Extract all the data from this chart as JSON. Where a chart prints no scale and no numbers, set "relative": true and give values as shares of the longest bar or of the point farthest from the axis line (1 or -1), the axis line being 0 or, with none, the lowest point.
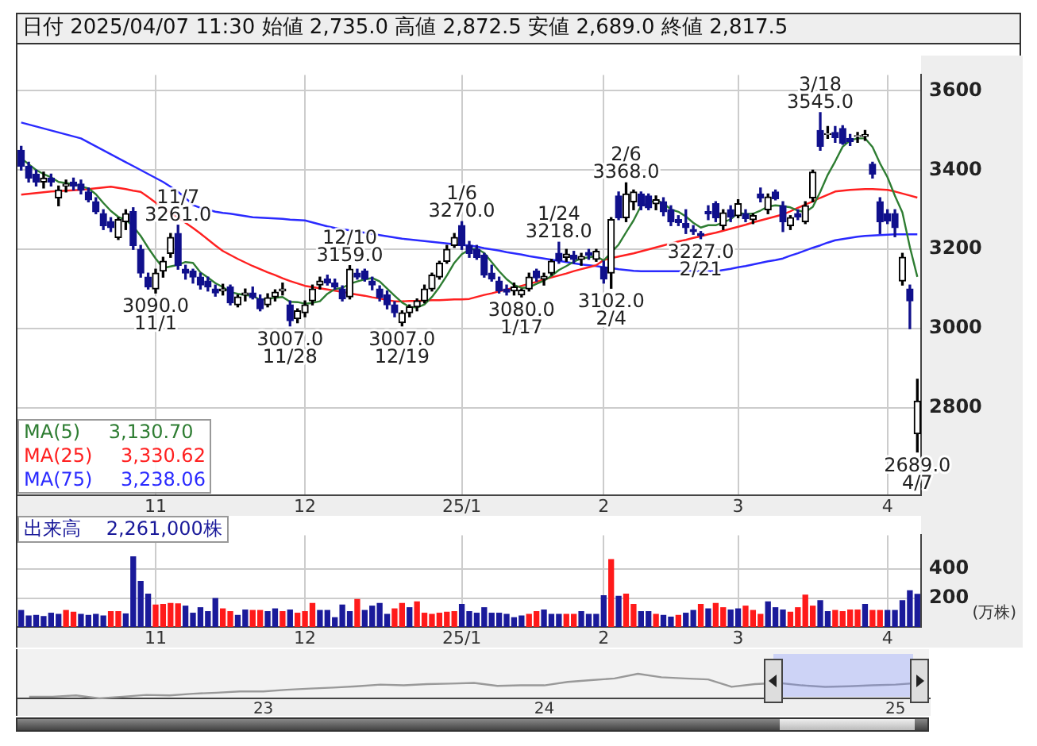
{
  "chart_data": [
    {
      "type": "candlestick",
      "title": "日付 2025/04/07 11:30 始値 2,735.0 高値 2,872.5 安値 2,689.0 終値 2,817.5",
      "categories": [
        null,
        null,
        null,
        null,
        null,
        null,
        null,
        null,
        null,
        null,
        null,
        null,
        null,
        null,
        null,
        null,
        null,
        null,
        "11",
        null,
        null,
        null,
        null,
        null,
        null,
        null,
        null,
        null,
        null,
        null,
        null,
        null,
        null,
        null,
        null,
        null,
        null,
        null,
        "12",
        null,
        null,
        null,
        null,
        null,
        null,
        null,
        null,
        null,
        null,
        null,
        null,
        null,
        null,
        null,
        null,
        null,
        null,
        null,
        null,
        "25/1",
        null,
        null,
        null,
        null,
        null,
        null,
        null,
        null,
        null,
        null,
        null,
        null,
        null,
        null,
        null,
        null,
        null,
        null,
        "2",
        null,
        null,
        null,
        null,
        null,
        null,
        null,
        null,
        null,
        null,
        null,
        null,
        null,
        null,
        null,
        null,
        null,
        "3",
        null,
        null,
        null,
        null,
        null,
        null,
        null,
        null,
        null,
        null,
        null,
        null,
        null,
        null,
        null,
        null,
        null,
        null,
        null,
        "4",
        null,
        null,
        null,
        null
      ],
      "ohlc": [
        [
          3450,
          3460,
          3400,
          3410
        ],
        [
          3410,
          3420,
          3370,
          3380
        ],
        [
          3390,
          3400,
          3360,
          3370
        ],
        [
          3370,
          3395,
          3355,
          3380
        ],
        [
          3380,
          3390,
          3360,
          3370
        ],
        [
          3330,
          3360,
          3310,
          3350
        ],
        [
          3360,
          3375,
          3345,
          3365
        ],
        [
          3370,
          3380,
          3350,
          3360
        ],
        [
          3365,
          3375,
          3340,
          3350
        ],
        [
          3345,
          3355,
          3320,
          3325
        ],
        [
          3320,
          3330,
          3290,
          3295
        ],
        [
          3290,
          3300,
          3250,
          3260
        ],
        [
          3270,
          3280,
          3245,
          3255
        ],
        [
          3230,
          3280,
          3225,
          3275
        ],
        [
          3270,
          3300,
          3250,
          3290
        ],
        [
          3295,
          3305,
          3200,
          3210
        ],
        [
          3200,
          3210,
          3130,
          3140
        ],
        [
          3130,
          3140,
          3100,
          3105
        ],
        [
          3100,
          3150,
          3090,
          3140
        ],
        [
          3145,
          3180,
          3130,
          3170
        ],
        [
          3190,
          3240,
          3180,
          3230
        ],
        [
          3240,
          3261,
          3150,
          3160
        ],
        [
          3150,
          3160,
          3125,
          3140
        ],
        [
          3145,
          3150,
          3115,
          3130
        ],
        [
          3130,
          3140,
          3100,
          3110
        ],
        [
          3120,
          3130,
          3095,
          3105
        ],
        [
          3100,
          3110,
          3082,
          3090
        ],
        [
          3095,
          3112,
          3085,
          3100
        ],
        [
          3105,
          3110,
          3060,
          3065
        ],
        [
          3060,
          3085,
          3055,
          3080
        ],
        [
          3085,
          3100,
          3070,
          3090
        ],
        [
          3090,
          3105,
          3075,
          3078
        ],
        [
          3075,
          3085,
          3045,
          3050
        ],
        [
          3060,
          3088,
          3055,
          3078
        ],
        [
          3080,
          3098,
          3070,
          3092
        ],
        [
          3095,
          3115,
          3085,
          3100
        ],
        [
          3060,
          3070,
          3007,
          3020
        ],
        [
          3025,
          3050,
          3015,
          3045
        ],
        [
          3040,
          3070,
          3030,
          3060
        ],
        [
          3070,
          3110,
          3060,
          3100
        ],
        [
          3110,
          3130,
          3100,
          3120
        ],
        [
          3125,
          3135,
          3110,
          3115
        ],
        [
          3115,
          3125,
          3100,
          3105
        ],
        [
          3100,
          3108,
          3070,
          3075
        ],
        [
          3080,
          3159,
          3075,
          3150
        ],
        [
          3140,
          3150,
          3125,
          3130
        ],
        [
          3145,
          3150,
          3120,
          3125
        ],
        [
          3120,
          3130,
          3098,
          3110
        ],
        [
          3100,
          3108,
          3070,
          3078
        ],
        [
          3085,
          3095,
          3050,
          3060
        ],
        [
          3060,
          3068,
          3030,
          3040
        ],
        [
          3015,
          3045,
          3007,
          3040
        ],
        [
          3040,
          3060,
          3030,
          3055
        ],
        [
          3055,
          3075,
          3045,
          3070
        ],
        [
          3070,
          3110,
          3065,
          3100
        ],
        [
          3100,
          3140,
          3095,
          3135
        ],
        [
          3130,
          3170,
          3125,
          3165
        ],
        [
          3170,
          3210,
          3165,
          3200
        ],
        [
          3210,
          3240,
          3205,
          3230
        ],
        [
          3260,
          3270,
          3200,
          3210
        ],
        [
          3210,
          3220,
          3180,
          3190
        ],
        [
          3200,
          3210,
          3175,
          3180
        ],
        [
          3185,
          3190,
          3130,
          3135
        ],
        [
          3140,
          3160,
          3120,
          3125
        ],
        [
          3120,
          3130,
          3090,
          3095
        ],
        [
          3100,
          3110,
          3085,
          3092
        ],
        [
          3095,
          3115,
          3085,
          3105
        ],
        [
          3085,
          3100,
          3080,
          3097
        ],
        [
          3100,
          3140,
          3095,
          3130
        ],
        [
          3145,
          3150,
          3120,
          3128
        ],
        [
          3125,
          3140,
          3110,
          3132
        ],
        [
          3140,
          3175,
          3135,
          3170
        ],
        [
          3190,
          3218,
          3165,
          3172
        ],
        [
          3180,
          3200,
          3170,
          3188
        ],
        [
          3185,
          3195,
          3165,
          3175
        ],
        [
          3175,
          3190,
          3160,
          3182
        ],
        [
          3192,
          3200,
          3175,
          3185
        ],
        [
          3175,
          3200,
          3170,
          3195
        ],
        [
          3155,
          3170,
          3115,
          3125
        ],
        [
          3140,
          3280,
          3102,
          3275
        ],
        [
          3335,
          3345,
          3275,
          3280
        ],
        [
          3280,
          3368,
          3270,
          3340
        ],
        [
          3320,
          3350,
          3300,
          3345
        ],
        [
          3340,
          3345,
          3300,
          3310
        ],
        [
          3335,
          3340,
          3300,
          3305
        ],
        [
          3315,
          3335,
          3300,
          3325
        ],
        [
          3320,
          3330,
          3285,
          3295
        ],
        [
          3300,
          3310,
          3260,
          3270
        ],
        [
          3275,
          3285,
          3260,
          3268
        ],
        [
          3265,
          3300,
          3240,
          3255
        ],
        [
          3250,
          3260,
          3238,
          3245
        ],
        [
          3240,
          3245,
          3227,
          3235
        ],
        [
          3295,
          3310,
          3275,
          3290
        ],
        [
          3315,
          3320,
          3270,
          3280
        ],
        [
          3260,
          3300,
          3250,
          3292
        ],
        [
          3300,
          3310,
          3270,
          3282
        ],
        [
          3285,
          3325,
          3280,
          3315
        ],
        [
          3290,
          3300,
          3270,
          3278
        ],
        [
          3275,
          3290,
          3265,
          3285
        ],
        [
          3340,
          3355,
          3320,
          3330
        ],
        [
          3300,
          3340,
          3290,
          3332
        ],
        [
          3345,
          3350,
          3325,
          3328
        ],
        [
          3310,
          3320,
          3245,
          3270
        ],
        [
          3260,
          3285,
          3250,
          3280
        ],
        [
          3290,
          3300,
          3275,
          3282
        ],
        [
          3270,
          3320,
          3265,
          3310
        ],
        [
          3330,
          3400,
          3320,
          3395
        ],
        [
          3500,
          3545,
          3450,
          3460
        ],
        [
          3490,
          3510,
          3480,
          3492
        ],
        [
          3495,
          3510,
          3470,
          3482
        ],
        [
          3505,
          3512,
          3465,
          3468
        ],
        [
          3480,
          3490,
          3462,
          3472
        ],
        [
          3485,
          3495,
          3470,
          3487
        ],
        [
          3485,
          3500,
          3475,
          3490
        ],
        [
          3415,
          3420,
          3380,
          3390
        ],
        [
          3320,
          3330,
          3240,
          3270
        ],
        [
          3290,
          3300,
          3265,
          3272
        ],
        [
          3290,
          3300,
          3232,
          3255
        ],
        [
          3120,
          3190,
          3110,
          3180
        ],
        [
          3100,
          3110,
          3000,
          3070
        ],
        [
          2735,
          2872.5,
          2689,
          2817.5
        ]
      ],
      "series": [
        {
          "type": "line",
          "name": "MA(5) 3,130.70",
          "color": "#2e7d32",
          "values": [
            3430,
            3415,
            3400,
            3390,
            3382,
            3370,
            3367,
            3365,
            3359,
            3354,
            3339,
            3317,
            3297,
            3282,
            3275,
            3258,
            3234,
            3204,
            3177,
            3153,
            3157,
            3161,
            3168,
            3166,
            3142,
            3129,
            3115,
            3105,
            3092,
            3088,
            3085,
            3083,
            3073,
            3075,
            3078,
            3080,
            3068,
            3067,
            3063,
            3065,
            3069,
            3088,
            3100,
            3103,
            3113,
            3119,
            3124,
            3128,
            3119,
            3101,
            3083,
            3066,
            3055,
            3053,
            3061,
            3080,
            3105,
            3134,
            3166,
            3188,
            3199,
            3202,
            3191,
            3168,
            3145,
            3125,
            3110,
            3103,
            3104,
            3113,
            3121,
            3133,
            3148,
            3158,
            3169,
            3177,
            3180,
            3183,
            3172,
            3192,
            3212,
            3243,
            3273,
            3310,
            3316,
            3325,
            3316,
            3301,
            3295,
            3283,
            3267,
            3255,
            3261,
            3261,
            3268,
            3276,
            3292,
            3289,
            3290,
            3298,
            3308,
            3311,
            3309,
            3306,
            3298,
            3294,
            3307,
            3345,
            3388,
            3422,
            3459,
            3475,
            3480,
            3480,
            3458,
            3417,
            3382,
            3335,
            3293,
            3206,
            3130.7
          ]
        },
        {
          "type": "line",
          "name": "MA(25) 3,330.62",
          "color": "#ff2020",
          "values": [
            3338,
            3340,
            3342,
            3344,
            3346,
            3347,
            3348,
            3349,
            3350,
            3352,
            3354,
            3356,
            3358,
            3355,
            3352,
            3348,
            3345,
            3332,
            3318,
            3305,
            3292,
            3280,
            3267,
            3254,
            3240,
            3225,
            3210,
            3196,
            3186,
            3176,
            3167,
            3158,
            3150,
            3142,
            3135,
            3127,
            3120,
            3114,
            3108,
            3105,
            3102,
            3099,
            3096,
            3093,
            3089,
            3086,
            3083,
            3079,
            3076,
            3072,
            3069,
            3069,
            3070,
            3070,
            3071,
            3072,
            3072,
            3073,
            3074,
            3074,
            3075,
            3080,
            3085,
            3089,
            3094,
            3099,
            3103,
            3108,
            3113,
            3118,
            3124,
            3129,
            3134,
            3139,
            3145,
            3150,
            3155,
            3160,
            3173,
            3178,
            3182,
            3186,
            3190,
            3195,
            3200,
            3205,
            3210,
            3215,
            3220,
            3224,
            3229,
            3233,
            3238,
            3242,
            3247,
            3252,
            3257,
            3262,
            3268,
            3273,
            3278,
            3283,
            3288,
            3296,
            3305,
            3313,
            3321,
            3330,
            3338,
            3346,
            3348,
            3350,
            3351,
            3352,
            3352,
            3351,
            3350,
            3346,
            3341,
            3336,
            3330.62
          ]
        },
        {
          "type": "line",
          "name": "MA(75) 3,238.06",
          "color": "#2a2aff",
          "values": [
            3520,
            3515,
            3510,
            3505,
            3500,
            3495,
            3490,
            3485,
            3480,
            3470,
            3460,
            3450,
            3440,
            3430,
            3420,
            3410,
            3400,
            3390,
            3380,
            3370,
            3358,
            3345,
            3330,
            3312,
            3305,
            3300,
            3295,
            3292,
            3290,
            3287,
            3284,
            3281,
            3280,
            3279,
            3278,
            3277,
            3275,
            3274,
            3273,
            3268,
            3263,
            3258,
            3254,
            3251,
            3248,
            3245,
            3242,
            3239,
            3236,
            3233,
            3230,
            3227,
            3225,
            3223,
            3221,
            3219,
            3217,
            3215,
            3213,
            3211,
            3210,
            3207,
            3203,
            3200,
            3197,
            3193,
            3190,
            3187,
            3183,
            3180,
            3177,
            3174,
            3171,
            3168,
            3165,
            3162,
            3160,
            3158,
            3155,
            3153,
            3150,
            3148,
            3146,
            3145,
            3145,
            3145,
            3145,
            3145,
            3145,
            3145,
            3145,
            3145,
            3145,
            3145,
            3148,
            3151,
            3155,
            3158,
            3162,
            3166,
            3170,
            3173,
            3177,
            3184,
            3190,
            3197,
            3204,
            3210,
            3217,
            3223,
            3226,
            3229,
            3232,
            3234,
            3235,
            3236,
            3237,
            3238,
            3238,
            3238,
            3238.06
          ]
        }
      ],
      "annotations": [
        {
          "text": "3090.0\n11/1",
          "y": 3090
        },
        {
          "text": "11/7\n3261.0",
          "y": 3261
        },
        {
          "text": "3007.0\n11/28",
          "y": 3007
        },
        {
          "text": "12/10\n3159.0",
          "y": 3159
        },
        {
          "text": "3007.0\n12/19",
          "y": 3007
        },
        {
          "text": "1/6\n3270.0",
          "y": 3270
        },
        {
          "text": "3080.0\n1/17",
          "y": 3080
        },
        {
          "text": "1/24\n3218.0",
          "y": 3218
        },
        {
          "text": "3102.0\n2/4",
          "y": 3102
        },
        {
          "text": "2/6\n3368.0",
          "y": 3368
        },
        {
          "text": "3227.0\n2/21",
          "y": 3227
        },
        {
          "text": "3/18\n3545.0",
          "y": 3545
        },
        {
          "text": "2689.0\n4/7",
          "y": 2689
        }
      ],
      "ylim": [
        2580,
        3640
      ],
      "yticks": [
        2800,
        3000,
        3200,
        3400,
        3600
      ],
      "grid": true,
      "legend": "bottom left"
    },
    {
      "type": "bar",
      "title": "出来高 2,261,000株",
      "ylabel": "(万株)",
      "categories": [
        null,
        null,
        null,
        null,
        null,
        null,
        null,
        null,
        null,
        null,
        null,
        null,
        null,
        null,
        null,
        null,
        null,
        null,
        "11",
        null,
        null,
        null,
        null,
        null,
        null,
        null,
        null,
        null,
        null,
        null,
        null,
        null,
        null,
        null,
        null,
        null,
        null,
        null,
        "12",
        null,
        null,
        null,
        null,
        null,
        null,
        null,
        null,
        null,
        null,
        null,
        null,
        null,
        null,
        null,
        null,
        null,
        null,
        null,
        null,
        "25/1",
        null,
        null,
        null,
        null,
        null,
        null,
        null,
        null,
        null,
        null,
        null,
        null,
        null,
        null,
        null,
        null,
        null,
        null,
        "2",
        null,
        null,
        null,
        null,
        null,
        null,
        null,
        null,
        null,
        null,
        null,
        null,
        null,
        null,
        null,
        null,
        null,
        "3",
        null,
        null,
        null,
        null,
        null,
        null,
        null,
        null,
        null,
        null,
        null,
        null,
        null,
        null,
        null,
        null,
        null,
        null,
        null,
        "4",
        null,
        null,
        null,
        null
      ],
      "values": [
        114,
        76,
        80,
        72,
        95,
        87,
        114,
        102,
        87,
        80,
        87,
        76,
        106,
        106,
        90,
        485,
        315,
        227,
        152,
        155,
        163,
        160,
        144,
        95,
        133,
        106,
        197,
        125,
        106,
        80,
        117,
        114,
        114,
        106,
        125,
        106,
        117,
        95,
        106,
        163,
        114,
        114,
        64,
        152,
        106,
        190,
        114,
        144,
        163,
        87,
        125,
        163,
        133,
        174,
        95,
        87,
        95,
        102,
        106,
        155,
        106,
        95,
        133,
        95,
        95,
        87,
        64,
        76,
        87,
        106,
        117,
        87,
        87,
        87,
        87,
        106,
        87,
        87,
        216,
        466,
        212,
        227,
        155,
        106,
        106,
        87,
        80,
        68,
        80,
        95,
        114,
        155,
        125,
        163,
        133,
        117,
        125,
        144,
        114,
        87,
        174,
        133,
        117,
        102,
        133,
        220,
        144,
        182,
        106,
        114,
        106,
        117,
        117,
        155,
        114,
        114,
        114,
        114,
        182,
        250,
        226
      ],
      "colors": [
        "#1a1a9a",
        "#1a1a9a",
        "#1a1a9a",
        "#1a1a9a",
        "#1a1a9a",
        "#1a1a9a",
        "#ff1a1a",
        "#ff1a1a",
        "#1a1a9a",
        "#1a1a9a",
        "#1a1a9a",
        "#1a1a9a",
        "#ff1a1a",
        "#ff1a1a",
        "#1a1a9a",
        "#1a1a9a",
        "#1a1a9a",
        "#1a1a9a",
        "#ff1a1a",
        "#ff1a1a",
        "#ff1a1a",
        "#ff1a1a",
        "#1a1a9a",
        "#1a1a9a",
        "#1a1a9a",
        "#1a1a9a",
        "#1a1a9a",
        "#ff1a1a",
        "#ff1a1a",
        "#1a1a9a",
        "#1a1a9a",
        "#ff1a1a",
        "#ff1a1a",
        "#1a1a9a",
        "#1a1a9a",
        "#ff1a1a",
        "#1a1a9a",
        "#ff1a1a",
        "#ff1a1a",
        "#ff1a1a",
        "#1a1a9a",
        "#1a1a9a",
        "#1a1a9a",
        "#1a1a9a",
        "#1a1a9a",
        "#ff1a1a",
        "#1a1a9a",
        "#1a1a9a",
        "#1a1a9a",
        "#1a1a9a",
        "#ff1a1a",
        "#ff1a1a",
        "#1a1a9a",
        "#ff1a1a",
        "#ff1a1a",
        "#ff1a1a",
        "#ff1a1a",
        "#ff1a1a",
        "#ff1a1a",
        "#1a1a9a",
        "#1a1a9a",
        "#1a1a9a",
        "#1a1a9a",
        "#1a1a9a",
        "#1a1a9a",
        "#1a1a9a",
        "#1a1a9a",
        "#1a1a9a",
        "#ff1a1a",
        "#ff1a1a",
        "#1a1a9a",
        "#1a1a9a",
        "#1a1a9a",
        "#ff1a1a",
        "#ff1a1a",
        "#1a1a9a",
        "#1a1a9a",
        "#1a1a9a",
        "#1a1a9a",
        "#ff1a1a",
        "#1a1a9a",
        "#ff1a1a",
        "#ff1a1a",
        "#1a1a9a",
        "#1a1a9a",
        "#ff1a1a",
        "#1a1a9a",
        "#1a1a9a",
        "#ff1a1a",
        "#1a1a9a",
        "#1a1a9a",
        "#ff1a1a",
        "#1a1a9a",
        "#ff1a1a",
        "#ff1a1a",
        "#1a1a9a",
        "#1a1a9a",
        "#ff1a1a",
        "#ff1a1a",
        "#ff1a1a",
        "#1a1a9a",
        "#1a1a9a",
        "#1a1a9a",
        "#ff1a1a",
        "#ff1a1a",
        "#ff1a1a",
        "#ff1a1a",
        "#1a1a9a",
        "#1a1a9a",
        "#ff1a1a",
        "#ff1a1a",
        "#ff1a1a",
        "#ff1a1a",
        "#1a1a9a",
        "#ff1a1a",
        "#ff1a1a",
        "#1a1a9a",
        "#1a1a9a",
        "#1a1a9a",
        "#1a1a9a",
        "#1a1a9a"
      ],
      "ylim": [
        0,
        635
      ],
      "yticks": [
        200,
        400
      ],
      "grid": true
    },
    {
      "type": "line",
      "relative": true,
      "color": "#999999",
      "categories": [
        null,
        null,
        null,
        null,
        null,
        null,
        null,
        null,
        null,
        null,
        "23",
        null,
        null,
        null,
        null,
        null,
        null,
        null,
        null,
        null,
        null,
        null,
        "24",
        null,
        null,
        null,
        null,
        null,
        null,
        null,
        null,
        null,
        null,
        null,
        null,
        null,
        null,
        "25",
        null
      ],
      "values": [
        0.07,
        0.07,
        0.12,
        0,
        0.07,
        0.14,
        0.12,
        0.19,
        0.23,
        0.28,
        0.28,
        0.35,
        0.4,
        0.44,
        0.49,
        0.56,
        0.53,
        0.58,
        0.6,
        0.63,
        0.51,
        0.53,
        0.53,
        0.67,
        0.74,
        0.81,
        1,
        0.86,
        0.81,
        0.77,
        0.47,
        0.58,
        0.63,
        0.53,
        0.47,
        0.49,
        0.53,
        0.56,
        0.63
      ]
    }
  ]
}
